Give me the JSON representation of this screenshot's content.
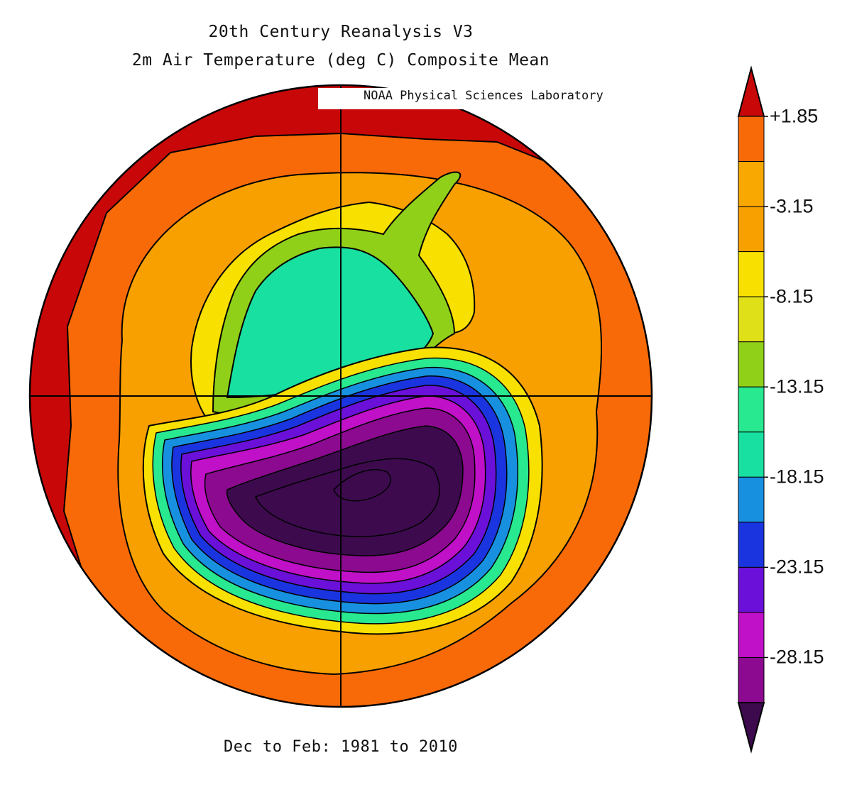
{
  "title": {
    "line1": "20th Century Reanalysis V3",
    "line2": "2m Air Temperature (deg C) Composite Mean",
    "source": "NOAA Physical Sciences Laboratory"
  },
  "footer": "Dec to Feb: 1981 to 2010",
  "variable": "2m Air Temperature",
  "units": "deg C",
  "projection": "south polar stereographic",
  "colorbar": {
    "orientation": "vertical",
    "labels": [
      "+1.85",
      "-3.15",
      "-8.15",
      "-13.15",
      "-18.15",
      "-23.15",
      "-28.15"
    ],
    "bins": [
      {
        "color": "#3d0a4e"
      },
      {
        "color": "#8b0a8f"
      },
      {
        "color": "#c010c8"
      },
      {
        "color": "#6a10d8"
      },
      {
        "color": "#1a35e0"
      },
      {
        "color": "#1890e0"
      },
      {
        "color": "#18e0a0"
      },
      {
        "color": "#28e890"
      },
      {
        "color": "#90d018"
      },
      {
        "color": "#e0e018"
      },
      {
        "color": "#f8e000"
      },
      {
        "color": "#f8a000"
      },
      {
        "color": "#f8a800"
      },
      {
        "color": "#f86a08"
      },
      {
        "color": "#c80808"
      }
    ]
  }
}
